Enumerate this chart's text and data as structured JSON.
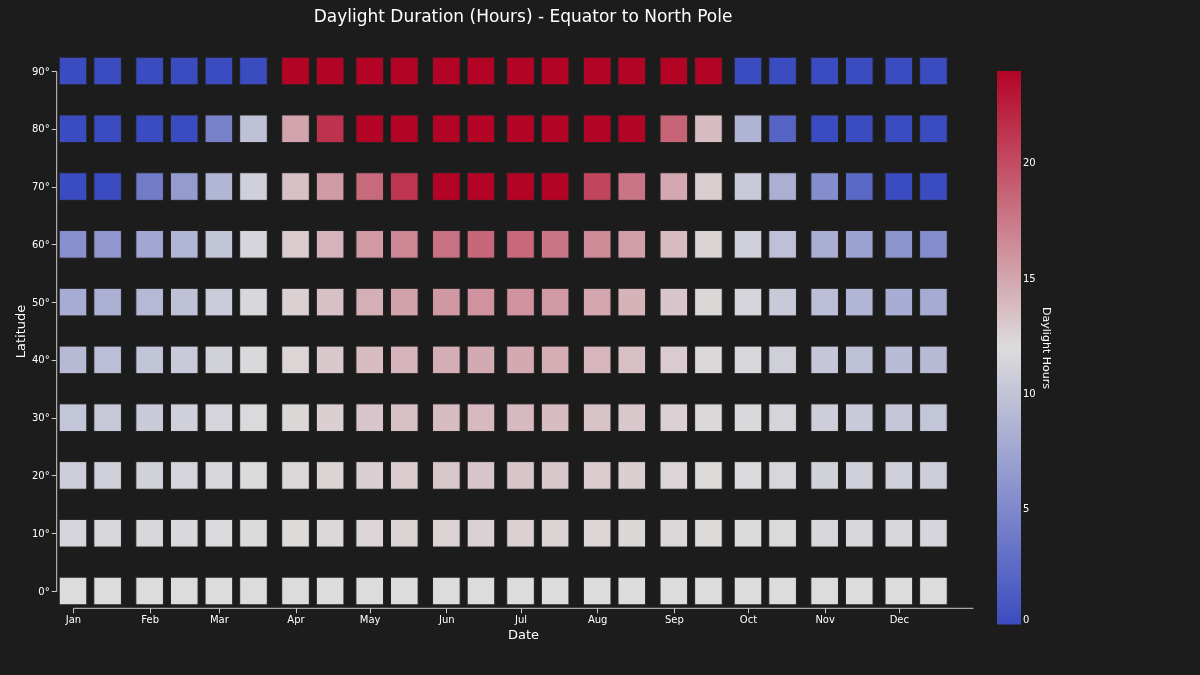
{
  "chart_data": {
    "type": "scatter",
    "title": "Daylight Duration (Hours) - Equator to North Pole",
    "xlabel": "Date",
    "ylabel": "Latitude",
    "clabel": "Daylight Hours",
    "x": [
      "--01-01",
      "--01-15",
      "--02-01",
      "--02-15",
      "--03-01",
      "--03-15",
      "--04-01",
      "--04-15",
      "--05-01",
      "--05-15",
      "--06-01",
      "--06-15",
      "--07-01",
      "--07-15",
      "--08-01",
      "--08-15",
      "--09-01",
      "--09-15",
      "--10-01",
      "--10-15",
      "--11-01",
      "--11-15",
      "--12-01",
      "--12-15",
      "--01-01",
      "--01-15",
      "--02-01",
      "--02-15",
      "--03-01",
      "--03-15",
      "--04-01",
      "--04-15",
      "--05-01",
      "--05-15",
      "--06-01",
      "--06-15",
      "--07-01",
      "--07-15",
      "--08-01",
      "--08-15",
      "--09-01",
      "--09-15",
      "--10-01",
      "--10-15",
      "--11-01",
      "--11-15",
      "--12-01",
      "--12-15",
      "--01-01",
      "--01-15",
      "--02-01",
      "--02-15",
      "--03-01",
      "--03-15",
      "--04-01",
      "--04-15",
      "--05-01",
      "--05-15",
      "--06-01",
      "--06-15",
      "--07-01",
      "--07-15",
      "--08-01",
      "--08-15",
      "--09-01",
      "--09-15",
      "--10-01",
      "--10-15",
      "--11-01",
      "--11-15",
      "--12-01",
      "--12-15",
      "--01-01",
      "--01-15",
      "--02-01",
      "--02-15",
      "--03-01",
      "--03-15",
      "--04-01",
      "--04-15",
      "--05-01",
      "--05-15",
      "--06-01",
      "--06-15",
      "--07-01",
      "--07-15",
      "--08-01",
      "--08-15",
      "--09-01",
      "--09-15",
      "--10-01",
      "--10-15",
      "--11-01",
      "--11-15",
      "--12-01",
      "--12-15",
      "--01-01",
      "--01-15",
      "--02-01",
      "--02-15",
      "--03-01",
      "--03-15",
      "--04-01",
      "--04-15",
      "--05-01",
      "--05-15",
      "--06-01",
      "--06-15",
      "--07-01",
      "--07-15",
      "--08-01",
      "--08-15",
      "--09-01",
      "--09-15",
      "--10-01",
      "--10-15",
      "--11-01",
      "--11-15",
      "--12-01",
      "--12-15",
      "--01-01",
      "--01-15",
      "--02-01",
      "--02-15",
      "--03-01",
      "--03-15",
      "--04-01",
      "--04-15",
      "--05-01",
      "--05-15",
      "--06-01",
      "--06-15",
      "--07-01",
      "--07-15",
      "--08-01",
      "--08-15",
      "--09-01",
      "--09-15",
      "--10-01",
      "--10-15",
      "--11-01",
      "--11-15",
      "--12-01",
      "--12-15",
      "--01-01",
      "--01-15",
      "--02-01",
      "--02-15",
      "--03-01",
      "--03-15",
      "--04-01",
      "--04-15",
      "--05-01",
      "--05-15",
      "--06-01",
      "--06-15",
      "--07-01",
      "--07-15",
      "--08-01",
      "--08-15",
      "--09-01",
      "--09-15",
      "--10-01",
      "--10-15",
      "--11-01",
      "--11-15",
      "--12-01",
      "--12-15",
      "--01-01",
      "--01-15",
      "--02-01",
      "--02-15",
      "--03-01",
      "--03-15",
      "--04-01",
      "--04-15",
      "--05-01",
      "--05-15",
      "--06-01",
      "--06-15",
      "--07-01",
      "--07-15",
      "--08-01",
      "--08-15",
      "--09-01",
      "--09-15",
      "--10-01",
      "--10-15",
      "--11-01",
      "--11-15",
      "--12-01",
      "--12-15",
      "--01-01",
      "--01-15",
      "--02-01",
      "--02-15",
      "--03-01",
      "--03-15",
      "--04-01",
      "--04-15",
      "--05-01",
      "--05-15",
      "--06-01",
      "--06-15",
      "--07-01",
      "--07-15",
      "--08-01",
      "--08-15",
      "--09-01",
      "--09-15",
      "--10-01",
      "--10-15",
      "--11-01",
      "--11-15",
      "--12-01",
      "--12-15",
      "--01-01",
      "--01-15",
      "--02-01",
      "--02-15",
      "--03-01",
      "--03-15",
      "--04-01",
      "--04-15",
      "--05-01",
      "--05-15",
      "--06-01",
      "--06-15",
      "--07-01",
      "--07-15",
      "--08-01",
      "--08-15",
      "--09-01",
      "--09-15",
      "--10-01",
      "--10-15",
      "--11-01",
      "--11-15",
      "--12-01",
      "--12-15"
    ],
    "values": [
      0,
      0,
      0,
      0,
      0,
      0,
      0,
      0,
      0,
      0,
      0,
      0,
      0,
      0,
      0,
      0,
      0,
      0,
      0,
      0,
      0,
      0,
      0,
      0,
      10,
      10,
      10,
      10,
      10,
      10,
      10,
      10,
      10,
      10,
      10,
      10,
      10,
      10,
      10,
      10,
      10,
      10,
      10,
      10,
      10,
      10,
      10,
      10,
      20,
      20,
      20,
      20,
      20,
      20,
      20,
      20,
      20,
      20,
      20,
      20,
      20,
      20,
      20,
      20,
      20,
      20,
      20,
      20,
      20,
      20,
      20,
      20,
      30,
      30,
      30,
      30,
      30,
      30,
      30,
      30,
      30,
      30,
      30,
      30,
      30,
      30,
      30,
      30,
      30,
      30,
      30,
      30,
      30,
      30,
      30,
      30,
      40,
      40,
      40,
      40,
      40,
      40,
      40,
      40,
      40,
      40,
      40,
      40,
      40,
      40,
      40,
      40,
      40,
      40,
      40,
      40,
      40,
      40,
      40,
      40,
      50,
      50,
      50,
      50,
      50,
      50,
      50,
      50,
      50,
      50,
      50,
      50,
      50,
      50,
      50,
      50,
      50,
      50,
      50,
      50,
      50,
      50,
      50,
      50,
      60,
      60,
      60,
      60,
      60,
      60,
      60,
      60,
      60,
      60,
      60,
      60,
      60,
      60,
      60,
      60,
      60,
      60,
      60,
      60,
      60,
      60,
      60,
      60,
      70,
      70,
      70,
      70,
      70,
      70,
      70,
      70,
      70,
      70,
      70,
      70,
      70,
      70,
      70,
      70,
      70,
      70,
      70,
      70,
      70,
      70,
      70,
      70,
      80,
      80,
      80,
      80,
      80,
      80,
      80,
      80,
      80,
      80,
      80,
      80,
      80,
      80,
      80,
      80,
      80,
      80,
      80,
      80,
      80,
      80,
      80,
      80,
      90,
      90,
      90,
      90,
      90,
      90,
      90,
      90,
      90,
      90,
      90,
      90,
      90,
      90,
      90,
      90,
      90,
      90,
      90,
      90,
      90,
      90,
      90,
      90
    ],
    "cvalues": [
      12,
      12,
      12,
      12,
      12,
      12,
      12,
      12,
      12,
      12,
      12,
      12,
      12,
      12,
      12,
      12,
      12,
      12,
      12,
      12,
      12,
      12,
      12,
      12,
      11.4,
      11.5,
      11.6,
      11.7,
      11.8,
      11.9,
      12.1,
      12.2,
      12.4,
      12.5,
      12.5,
      12.6,
      12.6,
      12.5,
      12.4,
      12.3,
      12.2,
      12.1,
      11.9,
      11.8,
      11.6,
      11.5,
      11.5,
      11.4,
      10.8,
      10.9,
      11.1,
      11.3,
      11.6,
      11.9,
      12.2,
      12.5,
      12.7,
      12.9,
      13.1,
      13.2,
      13.2,
      13.1,
      12.9,
      12.7,
      12.4,
      12.1,
      11.8,
      11.5,
      11.2,
      11.0,
      10.9,
      10.8,
      10.1,
      10.3,
      10.6,
      11.0,
      11.4,
      11.8,
      12.3,
      12.7,
      13.2,
      13.5,
      13.8,
      13.9,
      13.9,
      13.8,
      13.4,
      13.1,
      12.6,
      12.2,
      11.7,
      11.3,
      10.8,
      10.5,
      10.2,
      10.1,
      9.2,
      9.5,
      10.0,
      10.5,
      11.1,
      11.7,
      12.4,
      13.1,
      13.7,
      14.2,
      14.6,
      14.8,
      14.8,
      14.6,
      14.1,
      13.6,
      12.9,
      12.2,
      11.5,
      10.9,
      10.2,
      9.7,
      9.3,
      9.2,
      8.0,
      8.3,
      9.1,
      9.8,
      10.7,
      11.6,
      12.6,
      13.5,
      14.5,
      15.2,
      15.8,
      16.1,
      16.1,
      15.7,
      15.0,
      14.3,
      13.2,
      12.3,
      11.3,
      10.5,
      9.5,
      8.8,
      8.1,
      7.9,
      5.7,
      6.3,
      7.6,
      8.8,
      10.0,
      11.4,
      12.9,
      14.2,
      15.7,
      16.8,
      17.9,
      18.5,
      18.4,
      17.7,
      16.5,
      15.4,
      13.8,
      12.5,
      11.0,
      9.7,
      8.2,
      7.1,
      6.0,
      5.5,
      0,
      0,
      4.0,
      6.6,
      8.8,
      11.0,
      13.5,
      15.6,
      18.3,
      21.2,
      24,
      24,
      24,
      24,
      20.4,
      17.7,
      14.9,
      12.8,
      10.5,
      8.3,
      5.5,
      2.4,
      0,
      0,
      0,
      0,
      0,
      0,
      4.5,
      9.8,
      15.1,
      21.4,
      24,
      24,
      24,
      24,
      24,
      24,
      24,
      24,
      18.7,
      13.7,
      8.7,
      2.0,
      0,
      0,
      0,
      0,
      0,
      0,
      0,
      0,
      0,
      0,
      24,
      24,
      24,
      24,
      24,
      24,
      24,
      24,
      24,
      24,
      24,
      24,
      0,
      0,
      0,
      0,
      0,
      0
    ],
    "xlim": [
      "--01-01",
      "--12-31"
    ],
    "xticks": [
      {
        "value": "--01-01",
        "label": "Jan"
      },
      {
        "value": "--02-01",
        "label": "Feb"
      },
      {
        "value": "--03-01",
        "label": "Mar"
      },
      {
        "value": "--04-01",
        "label": "Apr"
      },
      {
        "value": "--05-01",
        "label": "May"
      },
      {
        "value": "--06-01",
        "label": "Jun"
      },
      {
        "value": "--07-01",
        "label": "Jul"
      },
      {
        "value": "--08-01",
        "label": "Aug"
      },
      {
        "value": "--09-01",
        "label": "Sep"
      },
      {
        "value": "--10-01",
        "label": "Oct"
      },
      {
        "value": "--11-01",
        "label": "Nov"
      },
      {
        "value": "--12-01",
        "label": "Dec"
      }
    ],
    "ylim": [
      0,
      90
    ],
    "yticks": [
      {
        "value": 0,
        "label": "0°"
      },
      {
        "value": 10,
        "label": "10°"
      },
      {
        "value": 20,
        "label": "20°"
      },
      {
        "value": 30,
        "label": "30°"
      },
      {
        "value": 40,
        "label": "40°"
      },
      {
        "value": 50,
        "label": "50°"
      },
      {
        "value": 60,
        "label": "60°"
      },
      {
        "value": 70,
        "label": "70°"
      },
      {
        "value": 80,
        "label": "80°"
      },
      {
        "value": 90,
        "label": "90°"
      }
    ],
    "clim": [
      0,
      24
    ],
    "cticks": [
      0,
      5,
      10,
      15,
      20
    ],
    "marker": "square",
    "grid": false
  }
}
